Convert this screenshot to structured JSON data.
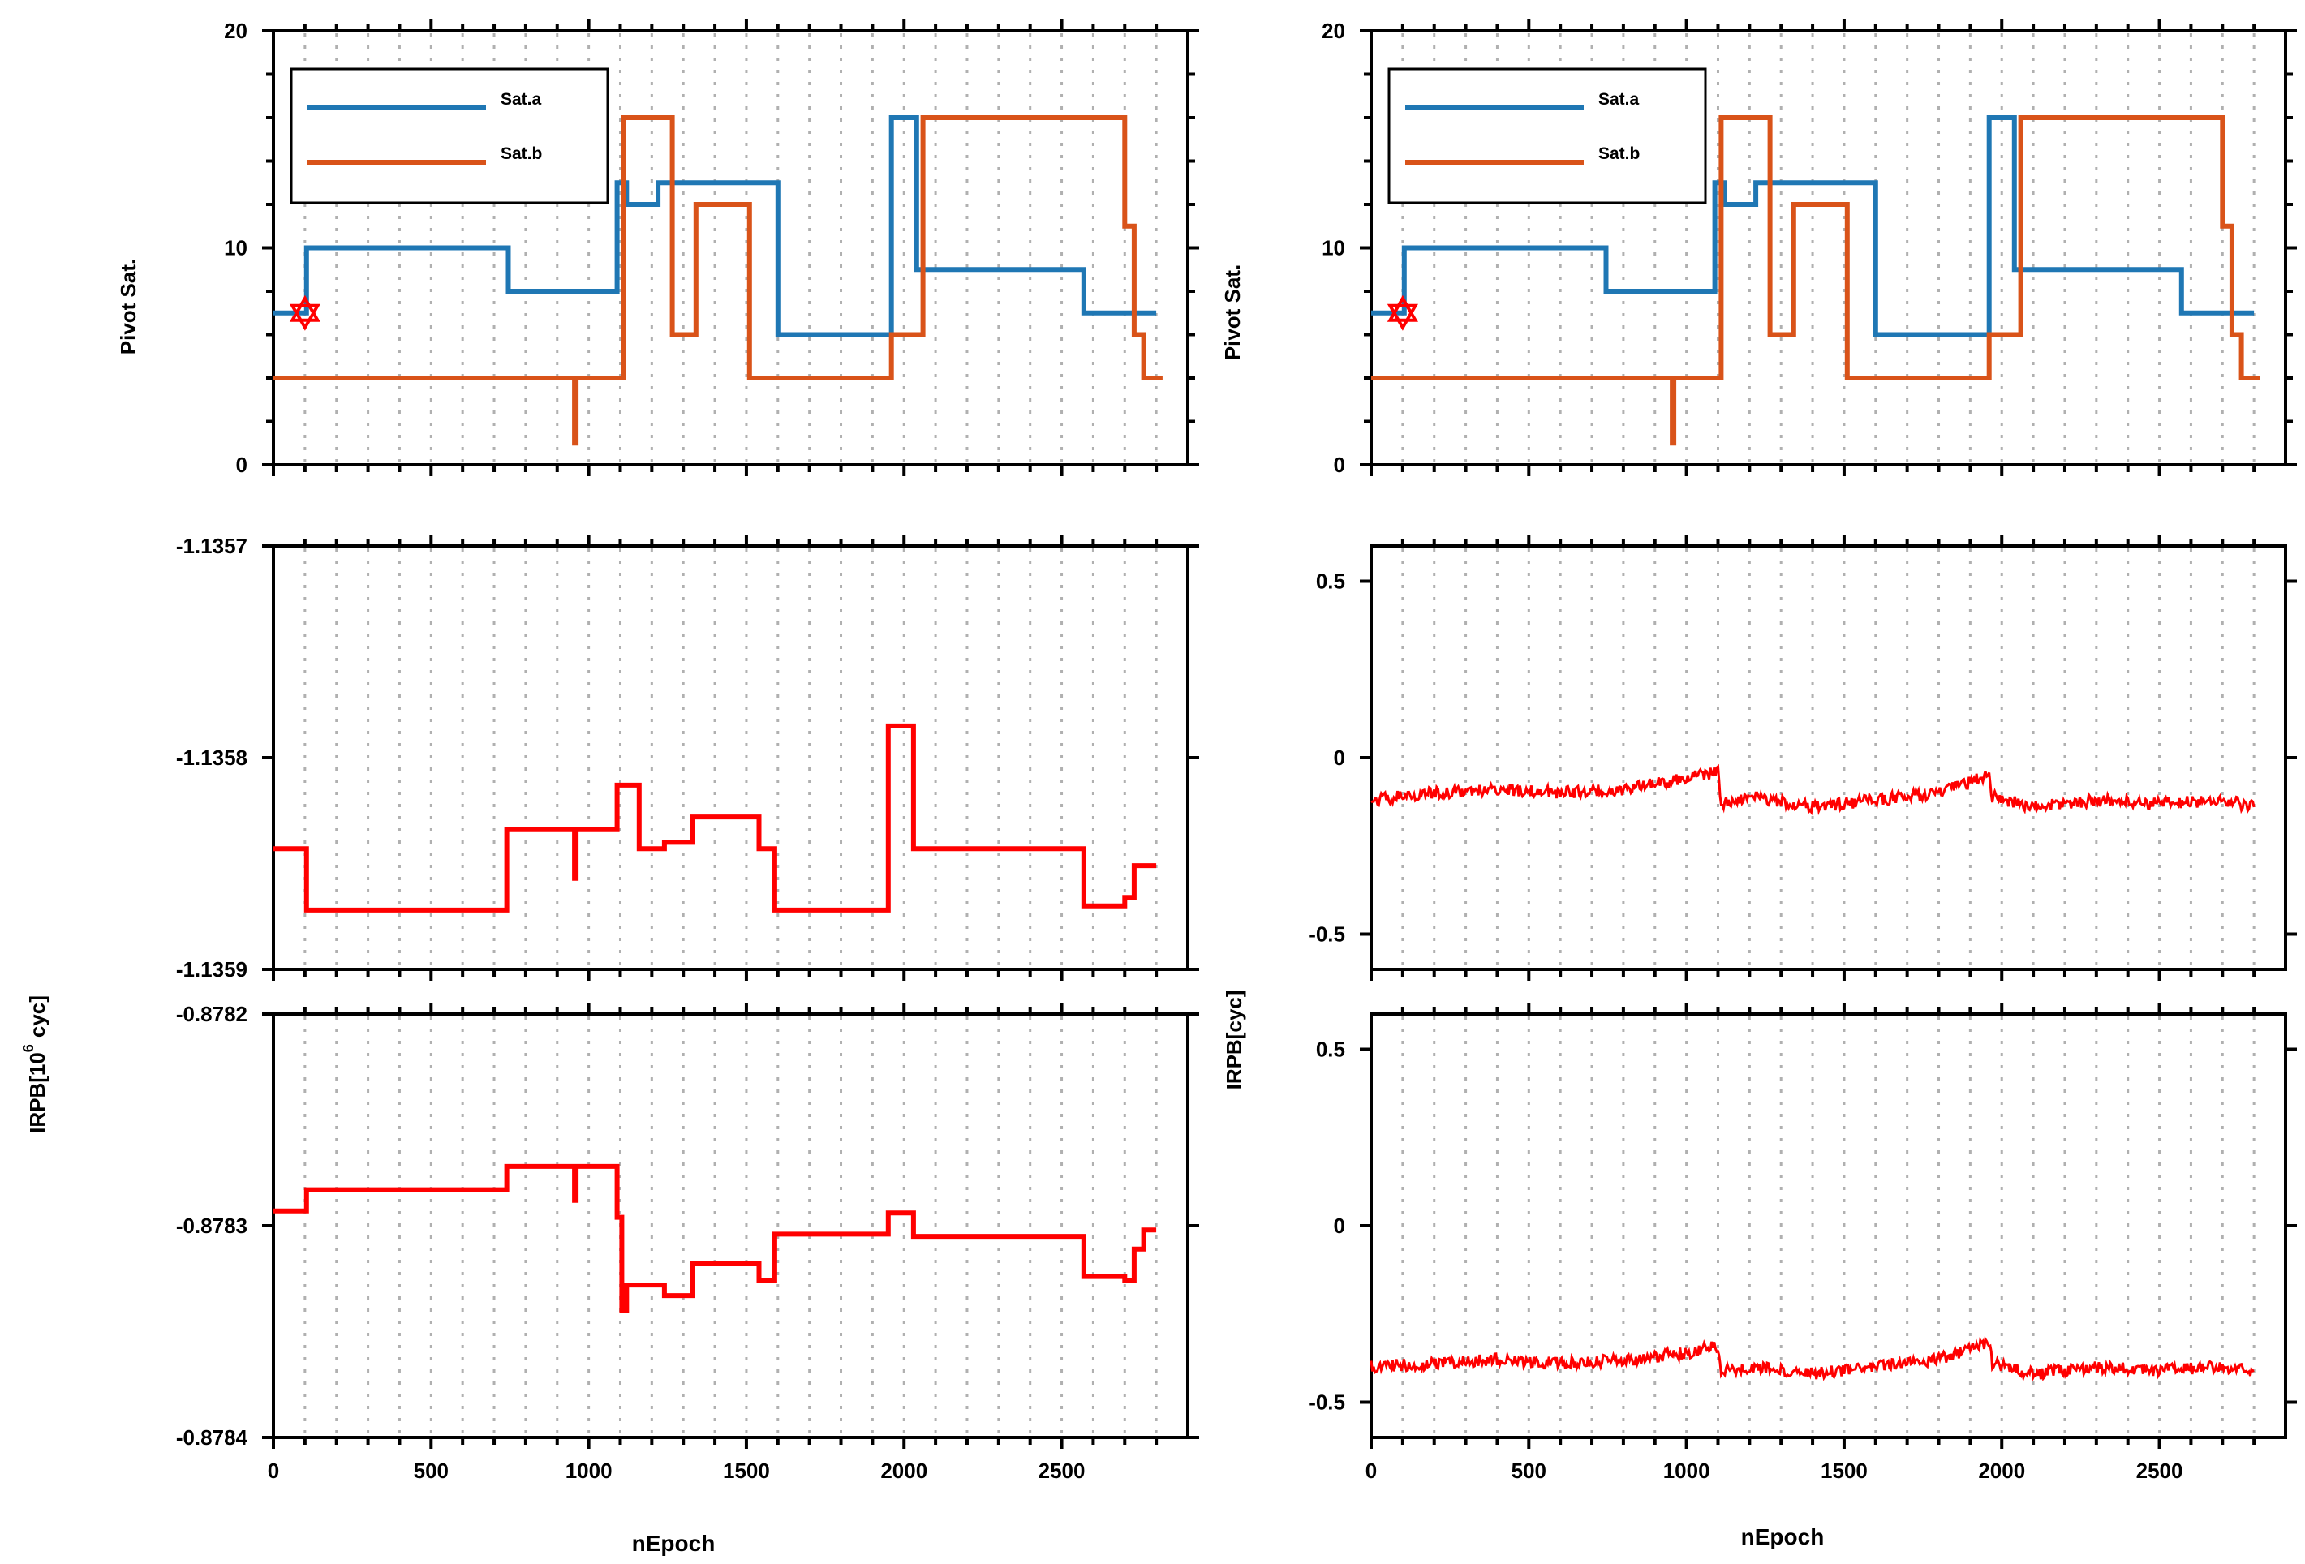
{
  "figure": {
    "left_column_xlabel": "nEpoch",
    "right_column_xlabel": "nEpoch",
    "left_ylabel_irpb_main": "IRPB[10",
    "left_ylabel_irpb_exponent": "6",
    "left_ylabel_irpb_unit": "cyc]",
    "right_ylabel_irpb": "IRPB[cyc]"
  },
  "colors": {
    "sat_a": "#1f77b4",
    "sat_b": "#d95319",
    "irpb": "#ff0000",
    "star": "#ff0000"
  },
  "chart_data": [
    {
      "id": "pivot-left",
      "type": "line",
      "ylabel": "Pivot Sat.",
      "xlim": [
        0,
        2900
      ],
      "ylim": [
        0,
        20
      ],
      "yticks": [
        "0",
        "10",
        "20"
      ],
      "legend": {
        "position": "top-left",
        "entries": [
          "Sat.a",
          "Sat.b"
        ]
      },
      "annotation": "star marker at start of Sat.a (epoch 100, value 7)",
      "series": [
        {
          "name": "Sat.a",
          "color": "sat_a",
          "x": [
            0,
            105,
            105,
            745,
            745,
            1090,
            1090,
            1120,
            1120,
            1220,
            1220,
            1600,
            1600,
            1960,
            1960,
            2040,
            2040,
            2570,
            2570,
            2800
          ],
          "y": [
            7,
            7,
            10,
            10,
            8,
            8,
            13,
            13,
            12,
            12,
            13,
            13,
            6,
            6,
            16,
            16,
            9,
            9,
            7,
            7
          ]
        },
        {
          "name": "Sat.b",
          "color": "sat_b",
          "x": [
            0,
            955,
            955,
            960,
            960,
            1110,
            1110,
            1265,
            1265,
            1340,
            1340,
            1510,
            1510,
            1960,
            1960,
            2060,
            2060,
            2700,
            2700,
            2730,
            2730,
            2760,
            2760,
            2780,
            2780,
            2820
          ],
          "y": [
            4,
            4,
            1,
            1,
            4,
            4,
            16,
            16,
            6,
            6,
            12,
            12,
            4,
            4,
            6,
            6,
            16,
            16,
            11,
            11,
            6,
            6,
            4,
            4,
            4,
            4
          ]
        }
      ]
    },
    {
      "id": "pivot-right",
      "type": "line",
      "ylabel": "Pivot Sat.",
      "xlim": [
        0,
        2900
      ],
      "ylim": [
        0,
        20
      ],
      "yticks": [
        "0",
        "10",
        "20"
      ],
      "legend": {
        "position": "top-left",
        "entries": [
          "Sat.a",
          "Sat.b"
        ]
      },
      "annotation": "star marker at start of Sat.a (epoch 100, value 7)",
      "series": [
        {
          "name": "Sat.a",
          "color": "sat_a",
          "x": [
            0,
            105,
            105,
            745,
            745,
            1090,
            1090,
            1120,
            1120,
            1220,
            1220,
            1600,
            1600,
            1960,
            1960,
            2040,
            2040,
            2570,
            2570,
            2800
          ],
          "y": [
            7,
            7,
            10,
            10,
            8,
            8,
            13,
            13,
            12,
            12,
            13,
            13,
            6,
            6,
            16,
            16,
            9,
            9,
            7,
            7
          ]
        },
        {
          "name": "Sat.b",
          "color": "sat_b",
          "x": [
            0,
            955,
            955,
            960,
            960,
            1110,
            1110,
            1265,
            1265,
            1340,
            1340,
            1510,
            1510,
            1960,
            1960,
            2060,
            2060,
            2700,
            2700,
            2730,
            2730,
            2760,
            2760,
            2780,
            2780,
            2820
          ],
          "y": [
            4,
            4,
            1,
            1,
            4,
            4,
            16,
            16,
            6,
            6,
            12,
            12,
            4,
            4,
            6,
            6,
            16,
            16,
            11,
            11,
            6,
            6,
            4,
            4,
            4,
            4
          ]
        }
      ]
    },
    {
      "id": "irpb-left-upper",
      "type": "line",
      "xlim": [
        0,
        2900
      ],
      "ylim": [
        -1.1359,
        -1.1357
      ],
      "yticks": [
        "-1.1359",
        "-1.1358",
        "-1.1357"
      ],
      "series": [
        {
          "name": "IRPB",
          "color": "irpb",
          "x": [
            0,
            105,
            105,
            740,
            740,
            955,
            955,
            960,
            960,
            1090,
            1090,
            1160,
            1160,
            1240,
            1240,
            1330,
            1330,
            1540,
            1540,
            1590,
            1590,
            1950,
            1950,
            2030,
            2030,
            2570,
            2570,
            2700,
            2700,
            2730,
            2730,
            2760,
            2760,
            2800
          ],
          "y": [
            -1.135843,
            -1.135843,
            -1.135872,
            -1.135872,
            -1.135834,
            -1.135834,
            -1.135857,
            -1.135857,
            -1.135834,
            -1.135834,
            -1.135813,
            -1.135813,
            -1.135843,
            -1.135843,
            -1.13584,
            -1.13584,
            -1.135828,
            -1.135828,
            -1.135843,
            -1.135843,
            -1.135872,
            -1.135872,
            -1.135785,
            -1.135785,
            -1.135843,
            -1.135843,
            -1.13587,
            -1.13587,
            -1.135866,
            -1.135866,
            -1.135851,
            -1.135851,
            -1.135851,
            -1.135851
          ]
        }
      ]
    },
    {
      "id": "irpb-left-lower",
      "type": "line",
      "xlabel": "nEpoch",
      "xlim": [
        0,
        2900
      ],
      "ylim": [
        -0.8784,
        -0.8782
      ],
      "yticks": [
        "-0.8784",
        "-0.8783",
        "-0.8782"
      ],
      "xticks": [
        "0",
        "500",
        "1000",
        "1500",
        "2000",
        "2500"
      ],
      "series": [
        {
          "name": "IRPB",
          "color": "irpb",
          "x": [
            0,
            105,
            105,
            740,
            740,
            955,
            955,
            960,
            960,
            1090,
            1090,
            1105,
            1105,
            1120,
            1120,
            1240,
            1240,
            1330,
            1330,
            1540,
            1540,
            1590,
            1590,
            1950,
            1950,
            2030,
            2030,
            2570,
            2570,
            2700,
            2700,
            2730,
            2730,
            2760,
            2760,
            2800
          ],
          "y": [
            -0.878293,
            -0.878293,
            -0.878283,
            -0.878283,
            -0.878272,
            -0.878272,
            -0.878288,
            -0.878288,
            -0.878272,
            -0.878272,
            -0.878296,
            -0.878296,
            -0.87834,
            -0.87834,
            -0.878328,
            -0.878328,
            -0.878333,
            -0.878333,
            -0.878318,
            -0.878318,
            -0.878326,
            -0.878326,
            -0.878304,
            -0.878304,
            -0.878294,
            -0.878294,
            -0.878305,
            -0.878305,
            -0.878324,
            -0.878324,
            -0.878326,
            -0.878326,
            -0.878311,
            -0.878311,
            -0.878302,
            -0.878302
          ]
        }
      ]
    },
    {
      "id": "irpb-right-upper",
      "type": "line",
      "xlim": [
        0,
        2900
      ],
      "ylim": [
        -0.6,
        0.6
      ],
      "yticks": [
        "-0.5",
        "0",
        "0.5"
      ],
      "series": [
        {
          "name": "IRPB",
          "color": "irpb",
          "style": "noisy",
          "x": [
            0,
            200,
            400,
            600,
            800,
            1000,
            1100,
            1110,
            1200,
            1400,
            1600,
            1800,
            1960,
            1970,
            2100,
            2300,
            2500,
            2700,
            2800
          ],
          "y": [
            -0.12,
            -0.1,
            -0.09,
            -0.1,
            -0.09,
            -0.06,
            -0.04,
            -0.13,
            -0.11,
            -0.14,
            -0.12,
            -0.1,
            -0.05,
            -0.11,
            -0.14,
            -0.12,
            -0.13,
            -0.12,
            -0.14
          ]
        }
      ]
    },
    {
      "id": "irpb-right-lower",
      "type": "line",
      "xlabel": "nEpoch",
      "xlim": [
        0,
        2900
      ],
      "ylim": [
        -0.6,
        0.6
      ],
      "yticks": [
        "-0.5",
        "0",
        "0.5"
      ],
      "xticks": [
        "0",
        "500",
        "1000",
        "1500",
        "2000",
        "2500"
      ],
      "series": [
        {
          "name": "IRPB",
          "color": "irpb",
          "style": "noisy",
          "x": [
            0,
            200,
            400,
            600,
            800,
            1000,
            1100,
            1110,
            1200,
            1400,
            1600,
            1800,
            1960,
            1970,
            2100,
            2300,
            2500,
            2700,
            2800
          ],
          "y": [
            -0.4,
            -0.39,
            -0.38,
            -0.39,
            -0.38,
            -0.36,
            -0.34,
            -0.41,
            -0.4,
            -0.42,
            -0.4,
            -0.38,
            -0.33,
            -0.39,
            -0.42,
            -0.4,
            -0.41,
            -0.4,
            -0.41
          ]
        }
      ]
    }
  ]
}
